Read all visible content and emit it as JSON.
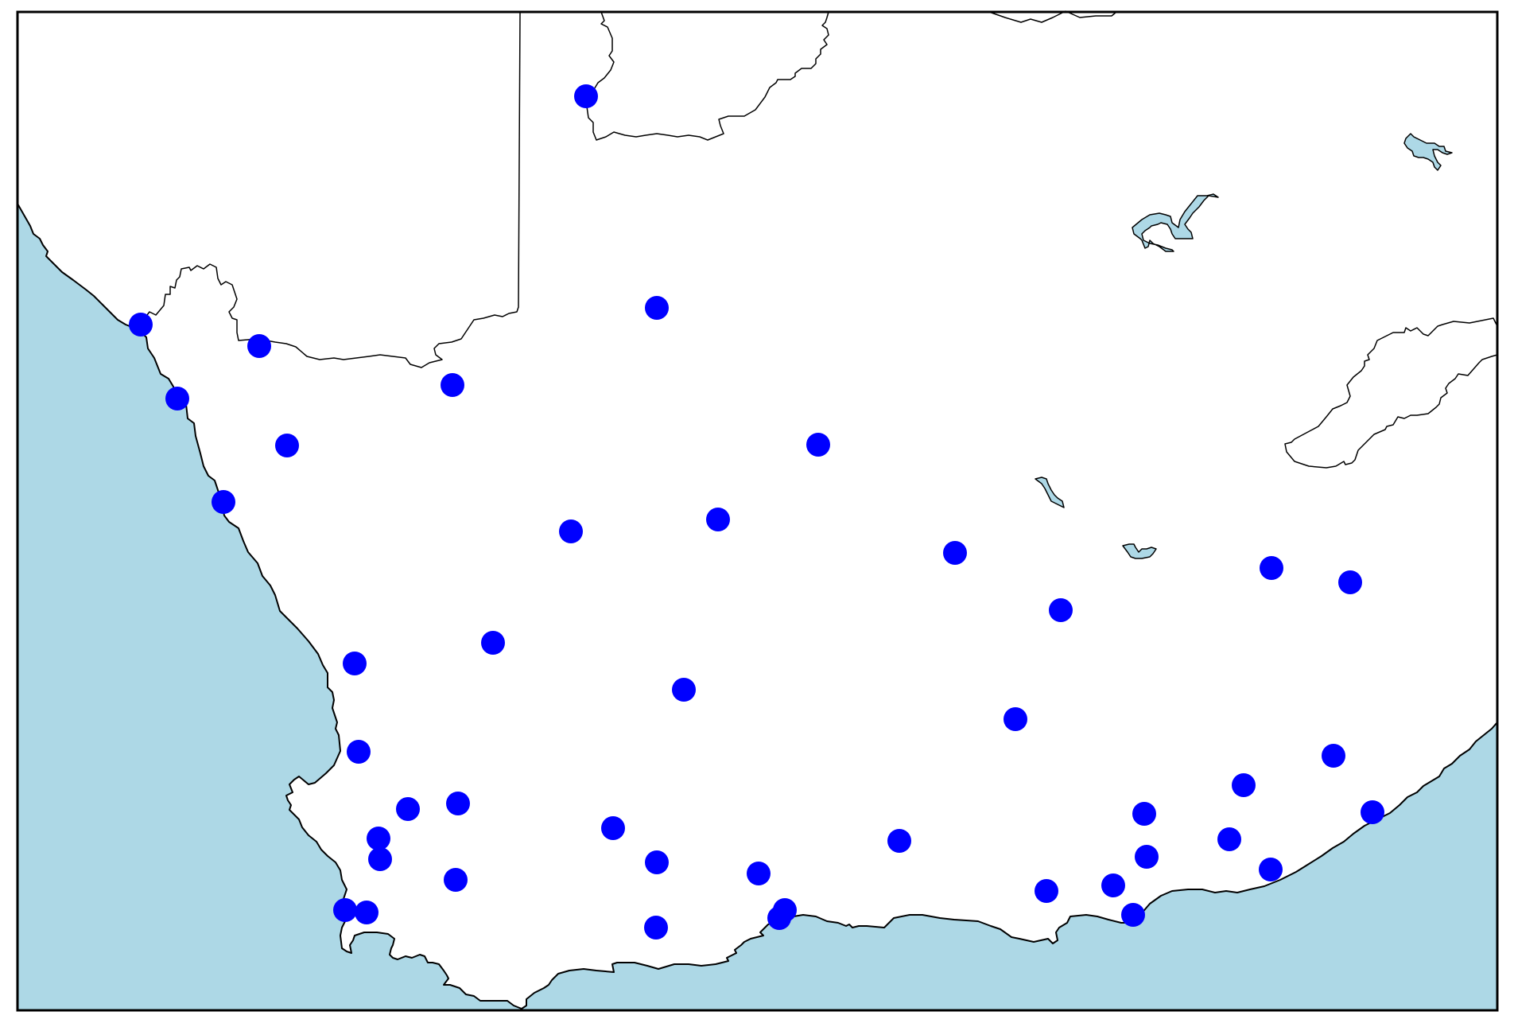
{
  "map": {
    "colors": {
      "ocean": "#add8e6",
      "land": "#ffffff",
      "border": "#000000",
      "lake": "#add8e6",
      "frame": "#000000",
      "marker": "#0000ff"
    },
    "marker_count": 45
  }
}
